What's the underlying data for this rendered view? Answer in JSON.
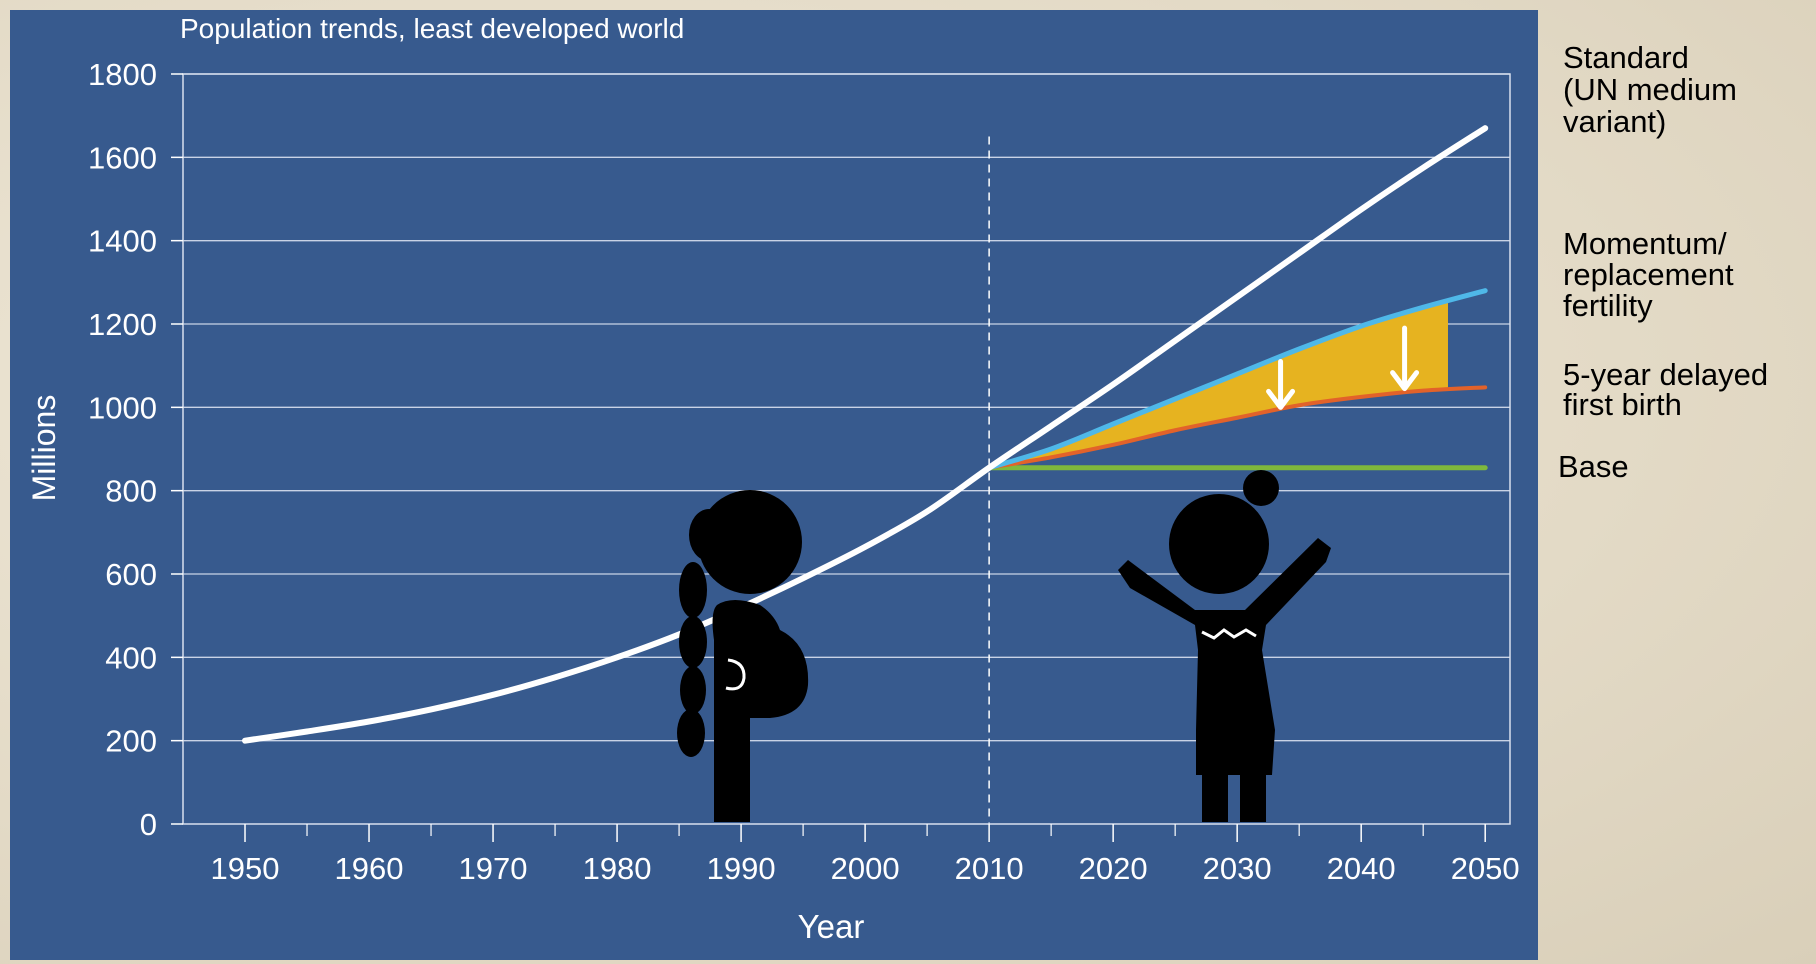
{
  "chart_data": {
    "type": "line",
    "title": "Population trends, least developed world",
    "xlabel": "Year",
    "ylabel": "Millions",
    "xlim": [
      1945,
      2052
    ],
    "ylim": [
      0,
      1800
    ],
    "x_ticks": [
      1950,
      1960,
      1970,
      1980,
      1990,
      2000,
      2010,
      2020,
      2030,
      2040,
      2050
    ],
    "y_ticks": [
      0,
      200,
      400,
      600,
      800,
      1000,
      1200,
      1400,
      1600,
      1800
    ],
    "grid": "horizontal",
    "projection_start": 2010,
    "series": [
      {
        "name": "Standard\n(UN medium\nvariant)",
        "color": "#ffffff",
        "x": [
          1950,
          1955,
          1960,
          1965,
          1970,
          1975,
          1980,
          1985,
          1990,
          1995,
          2000,
          2005,
          2010,
          2015,
          2020,
          2025,
          2030,
          2035,
          2040,
          2045,
          2050
        ],
        "values": [
          200,
          222,
          246,
          275,
          310,
          352,
          400,
          455,
          520,
          590,
          665,
          750,
          855,
          955,
          1055,
          1160,
          1265,
          1370,
          1475,
          1575,
          1670
        ]
      },
      {
        "name": "Momentum/\nreplacement\nfertility",
        "color": "#4fb8e8",
        "x": [
          2010,
          2015,
          2020,
          2025,
          2030,
          2035,
          2040,
          2045,
          2050
        ],
        "values": [
          855,
          900,
          960,
          1020,
          1080,
          1140,
          1195,
          1240,
          1280
        ]
      },
      {
        "name": "5-year delayed\nfirst birth",
        "color": "#e2622a",
        "x": [
          2010,
          2015,
          2020,
          2025,
          2030,
          2035,
          2040,
          2045,
          2050
        ],
        "values": [
          855,
          880,
          910,
          945,
          975,
          1005,
          1025,
          1040,
          1048
        ]
      },
      {
        "name": "Base",
        "color": "#7fb83c",
        "x": [
          2010,
          2050
        ],
        "values": [
          855,
          855
        ]
      }
    ],
    "fill_between": {
      "upper": "Momentum/\nreplacement\nfertility",
      "lower": "5-year delayed\nfirst birth",
      "color": "#e6b320",
      "x_end": 2047
    },
    "arrows": [
      {
        "x": 2033.5,
        "from": 1110,
        "to": 1000
      },
      {
        "x": 2043.5,
        "from": 1190,
        "to": 1045
      }
    ]
  }
}
